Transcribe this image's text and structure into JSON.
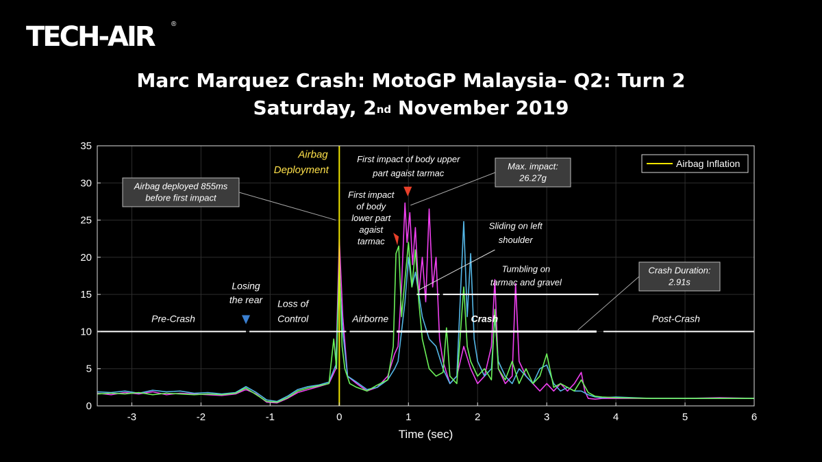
{
  "brand": {
    "logo_text": "TECH-AIR",
    "registered_mark": "®"
  },
  "title": {
    "line1": "Marc Marquez Crash: MotoGP Malaysia– Q2: Turn 2",
    "line2_before": "Saturday, 2",
    "line2_sup": "nd",
    "line2_after": " November 2019"
  },
  "chart_data": {
    "type": "line",
    "xlabel": "Time (sec)",
    "ylabel": "",
    "xlim": [
      -3.5,
      6
    ],
    "ylim": [
      0,
      35
    ],
    "xticks": [
      -3,
      -2,
      -1,
      0,
      1,
      2,
      3,
      4,
      5,
      6
    ],
    "yticks": [
      0,
      5,
      10,
      15,
      20,
      25,
      30,
      35
    ],
    "grid": true,
    "legend": {
      "placement": "top-right",
      "entries": [
        {
          "label": "Airbag Inflation",
          "color": "#f2e600"
        }
      ]
    },
    "airbag_line_x": 0,
    "series": [
      {
        "color": "#f040f0",
        "x": [
          -3.5,
          -3.3,
          -3.1,
          -2.9,
          -2.7,
          -2.5,
          -2.3,
          -2.1,
          -1.9,
          -1.7,
          -1.5,
          -1.35,
          -1.2,
          -1.05,
          -0.9,
          -0.75,
          -0.6,
          -0.45,
          -0.3,
          -0.15,
          -0.05,
          0,
          0.05,
          0.12,
          0.25,
          0.4,
          0.55,
          0.7,
          0.8,
          0.85,
          0.9,
          0.95,
          0.98,
          1.02,
          1.06,
          1.1,
          1.15,
          1.2,
          1.25,
          1.3,
          1.35,
          1.4,
          1.45,
          1.5,
          1.6,
          1.7,
          1.8,
          1.9,
          2.0,
          2.1,
          2.2,
          2.25,
          2.3,
          2.4,
          2.5,
          2.55,
          2.6,
          2.7,
          2.8,
          2.9,
          3.0,
          3.1,
          3.2,
          3.3,
          3.4,
          3.5,
          3.55,
          3.6,
          3.7,
          3.8,
          4.0,
          4.5,
          5.0,
          5.5,
          6.0
        ],
        "y": [
          1.7,
          1.5,
          1.8,
          1.6,
          1.9,
          1.5,
          1.7,
          1.6,
          1.5,
          1.4,
          1.6,
          2.2,
          1.6,
          0.5,
          0.4,
          1.0,
          1.8,
          2.2,
          2.6,
          3.0,
          5.0,
          22.5,
          12.0,
          4.0,
          3.0,
          2.0,
          2.5,
          4.0,
          7.0,
          8.0,
          16.0,
          27.3,
          22.0,
          26.0,
          19.0,
          24.0,
          15.0,
          20.0,
          14.0,
          26.5,
          16.0,
          20.0,
          9.0,
          6.0,
          3.0,
          4.0,
          8.0,
          5.0,
          3.0,
          4.0,
          8.0,
          17.0,
          5.0,
          3.0,
          4.0,
          16.5,
          6.0,
          4.0,
          3.0,
          2.0,
          3.0,
          2.0,
          3.0,
          2.0,
          3.0,
          4.5,
          2.0,
          1.0,
          0.9,
          1.0,
          1.0,
          1.0,
          1.0,
          1.1,
          1.0
        ]
      },
      {
        "color": "#55b8e8",
        "x": [
          -3.5,
          -3.3,
          -3.1,
          -2.9,
          -2.7,
          -2.5,
          -2.3,
          -2.1,
          -1.9,
          -1.7,
          -1.5,
          -1.35,
          -1.2,
          -1.05,
          -0.9,
          -0.75,
          -0.6,
          -0.45,
          -0.3,
          -0.15,
          -0.05,
          0,
          0.05,
          0.12,
          0.25,
          0.4,
          0.55,
          0.7,
          0.8,
          0.85,
          0.9,
          0.95,
          1.0,
          1.05,
          1.1,
          1.2,
          1.3,
          1.4,
          1.5,
          1.6,
          1.7,
          1.8,
          1.85,
          1.9,
          1.95,
          2.0,
          2.1,
          2.2,
          2.25,
          2.3,
          2.4,
          2.5,
          2.6,
          2.7,
          2.8,
          2.9,
          3.0,
          3.1,
          3.2,
          3.3,
          3.4,
          3.5,
          3.6,
          3.7,
          3.8,
          4.0,
          4.5,
          5.0,
          5.5,
          6.0
        ],
        "y": [
          1.9,
          1.8,
          2.0,
          1.7,
          2.1,
          1.9,
          2.0,
          1.7,
          1.8,
          1.6,
          1.8,
          2.6,
          1.8,
          0.8,
          0.6,
          1.3,
          2.2,
          2.6,
          2.8,
          3.2,
          5.5,
          18.0,
          10.0,
          4.0,
          3.2,
          2.2,
          2.5,
          3.5,
          5.0,
          6.0,
          10.0,
          14.0,
          20.0,
          16.0,
          18.0,
          12.0,
          9.0,
          8.0,
          5.0,
          3.0,
          4.0,
          24.8,
          12.0,
          20.5,
          9.0,
          6.0,
          4.0,
          5.0,
          12.0,
          6.0,
          4.0,
          3.0,
          5.0,
          4.0,
          3.0,
          5.0,
          5.5,
          3.0,
          2.0,
          2.5,
          2.0,
          2.0,
          1.5,
          1.2,
          1.1,
          1.2,
          1.0,
          1.0,
          1.0,
          1.0
        ]
      },
      {
        "color": "#6cf25a",
        "x": [
          -3.5,
          -3.3,
          -3.1,
          -2.9,
          -2.7,
          -2.5,
          -2.3,
          -2.1,
          -1.9,
          -1.7,
          -1.5,
          -1.35,
          -1.2,
          -1.05,
          -0.9,
          -0.75,
          -0.6,
          -0.45,
          -0.3,
          -0.15,
          -0.08,
          -0.04,
          0,
          0.04,
          0.08,
          0.15,
          0.25,
          0.4,
          0.55,
          0.7,
          0.78,
          0.82,
          0.86,
          0.9,
          0.95,
          1.0,
          1.05,
          1.1,
          1.15,
          1.2,
          1.3,
          1.4,
          1.5,
          1.55,
          1.6,
          1.7,
          1.8,
          1.85,
          1.9,
          2.0,
          2.1,
          2.2,
          2.25,
          2.3,
          2.4,
          2.5,
          2.6,
          2.7,
          2.8,
          2.9,
          3.0,
          3.1,
          3.2,
          3.3,
          3.4,
          3.5,
          3.6,
          3.7,
          3.8,
          4.0,
          4.5,
          5.0,
          5.5,
          6.0
        ],
        "y": [
          1.6,
          1.7,
          1.6,
          1.8,
          1.5,
          1.7,
          1.6,
          1.5,
          1.6,
          1.5,
          1.7,
          2.4,
          1.5,
          0.6,
          0.5,
          1.1,
          2.0,
          2.4,
          2.7,
          3.0,
          9.0,
          5.0,
          20.0,
          8.0,
          5.0,
          3.0,
          2.5,
          2.0,
          2.8,
          3.5,
          8.0,
          20.5,
          21.5,
          12.0,
          17.0,
          22.0,
          16.0,
          21.0,
          14.0,
          9.0,
          5.0,
          4.0,
          4.5,
          10.5,
          4.0,
          3.0,
          16.0,
          8.0,
          6.0,
          4.0,
          5.0,
          3.5,
          13.0,
          5.0,
          3.5,
          6.0,
          3.0,
          5.0,
          3.0,
          4.0,
          7.0,
          2.5,
          3.0,
          2.5,
          2.0,
          3.5,
          1.8,
          1.3,
          1.2,
          1.1,
          1.0,
          1.0,
          1.0,
          1.0
        ]
      }
    ],
    "annotations": {
      "airbag_deployment": [
        "Airbag",
        "Deployment"
      ],
      "airbag_deployed_box": [
        "Airbag deployed 855ms",
        "before first impact"
      ],
      "first_upper": [
        "First impact of body upper",
        "part agaist tarmac"
      ],
      "max_impact_box": [
        "Max. impact:",
        "26.27g"
      ],
      "first_lower": [
        "First impact",
        "of body",
        "lower part",
        "agaist",
        "tarmac"
      ],
      "sliding": [
        "Sliding on left",
        "shoulder"
      ],
      "tumbling": [
        "Tumbling on",
        "tarmac and gravel"
      ],
      "crash_duration_box": [
        "Crash Duration:",
        "2.91s"
      ],
      "losing_rear": [
        "Losing",
        "the rear"
      ],
      "loss_of_control": [
        "Loss of",
        "Control"
      ],
      "phases": {
        "pre_crash": "Pre-Crash",
        "airborne": "Airborne",
        "crash": "Crash",
        "post_crash": "Post-Crash"
      }
    },
    "colors": {
      "marker_blue": "#3a7fd0",
      "marker_red": "#e8402a",
      "box_fill": "#3c3c3c"
    }
  }
}
